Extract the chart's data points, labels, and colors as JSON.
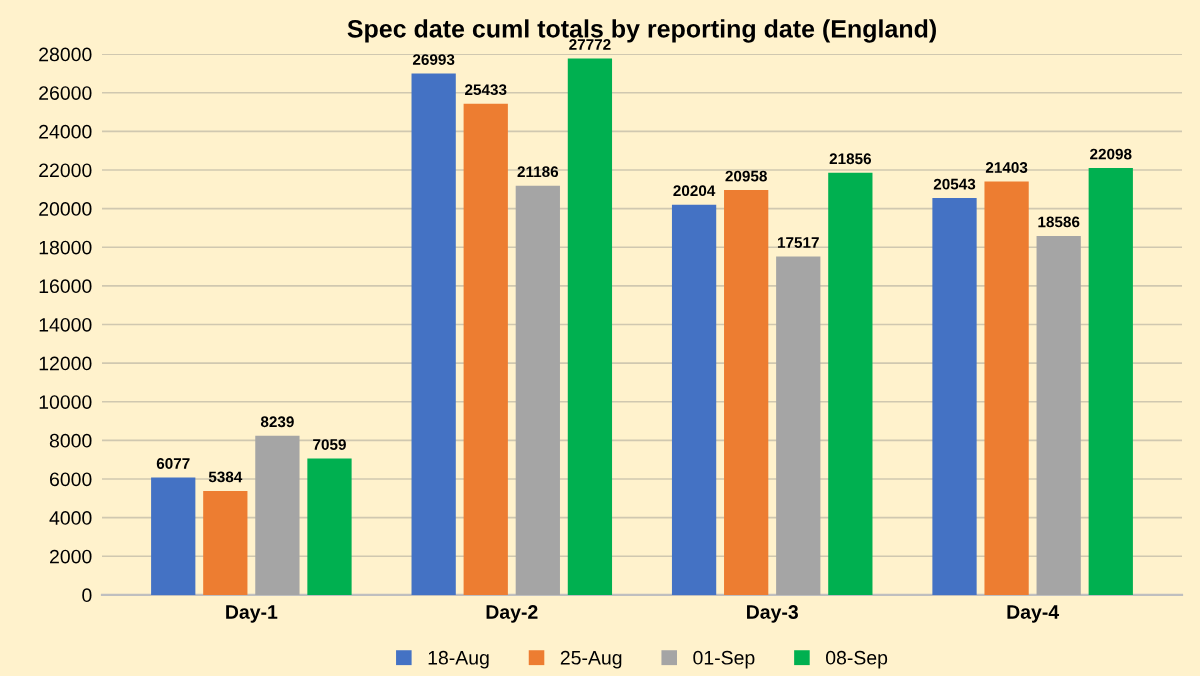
{
  "chart_data": {
    "type": "bar",
    "title": "Spec date cuml totals by reporting date (England)",
    "categories": [
      "Day-1",
      "Day-2",
      "Day-3",
      "Day-4"
    ],
    "series": [
      {
        "name": "18-Aug",
        "color": "#4472c4",
        "values": [
          6077,
          26993,
          20204,
          20543
        ]
      },
      {
        "name": "25-Aug",
        "color": "#ed7d31",
        "values": [
          5384,
          25433,
          20958,
          21403
        ]
      },
      {
        "name": "01-Sep",
        "color": "#a5a5a5",
        "values": [
          8239,
          21186,
          17517,
          18586
        ]
      },
      {
        "name": "08-Sep",
        "color": "#00b050",
        "values": [
          7059,
          27772,
          21856,
          22098
        ]
      }
    ],
    "ylim": [
      0,
      28000
    ],
    "yticks": [
      0,
      2000,
      4000,
      6000,
      8000,
      10000,
      12000,
      14000,
      16000,
      18000,
      20000,
      22000,
      24000,
      26000,
      28000
    ],
    "grid": "y",
    "legend": "bottom",
    "data_labels": true
  }
}
